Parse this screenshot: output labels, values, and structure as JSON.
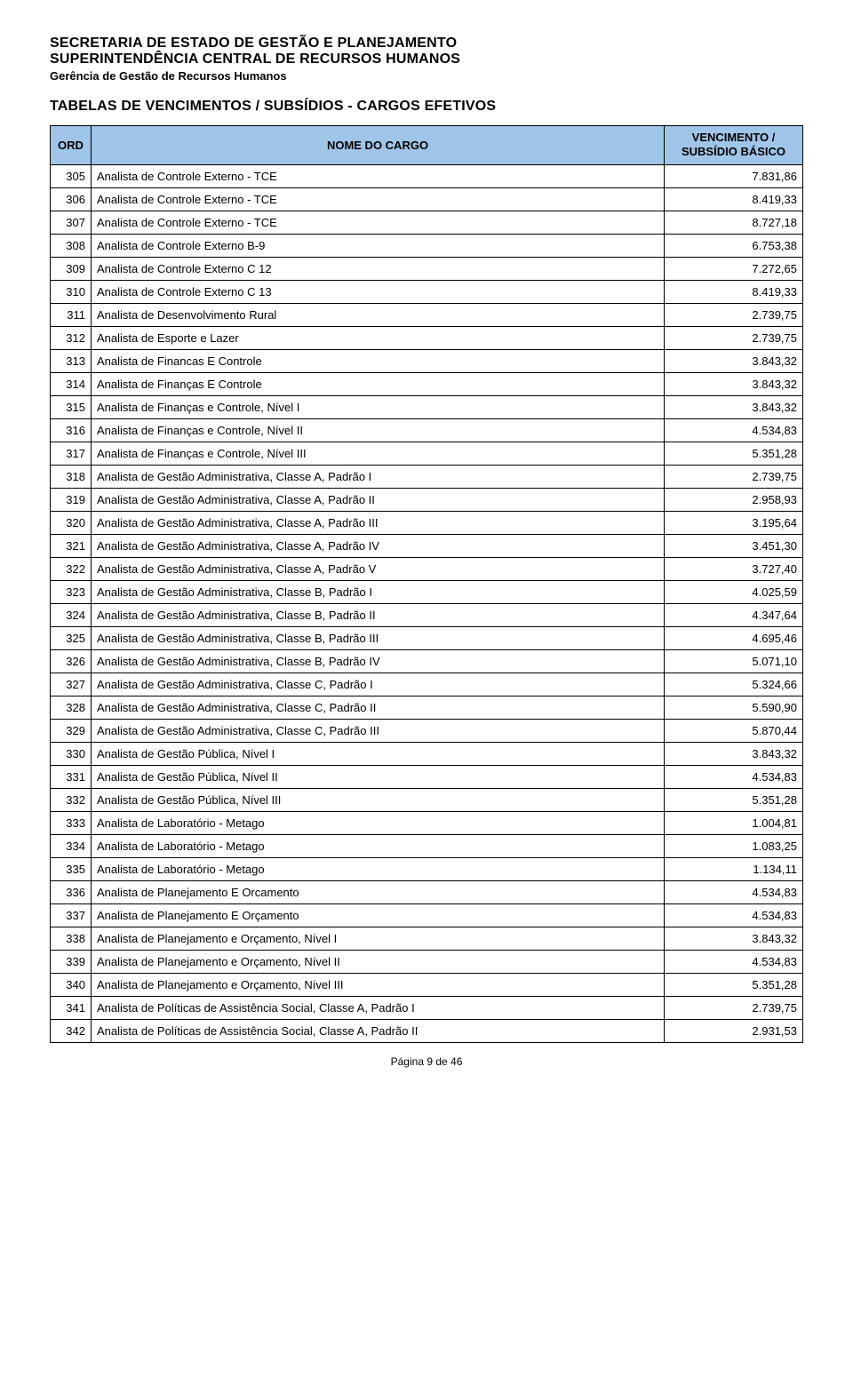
{
  "header": {
    "line1": "SECRETARIA DE ESTADO DE GESTÃO E PLANEJAMENTO",
    "line2": "SUPERINTENDÊNCIA CENTRAL DE RECURSOS HUMANOS",
    "line3": "Gerência de Gestão de Recursos Humanos"
  },
  "title": "TABELAS DE VENCIMENTOS / SUBSÍDIOS - CARGOS EFETIVOS",
  "table": {
    "header_bg": "#9fc5e8",
    "border_color": "#000000",
    "columns": {
      "ord": "ORD",
      "nome": "NOME DO CARGO",
      "venc_line1": "VENCIMENTO /",
      "venc_line2": "SUBSÍDIO BÁSICO"
    },
    "rows": [
      {
        "ord": "305",
        "nome": "Analista de Controle Externo - TCE",
        "val": "7.831,86"
      },
      {
        "ord": "306",
        "nome": "Analista de Controle Externo - TCE",
        "val": "8.419,33"
      },
      {
        "ord": "307",
        "nome": "Analista de Controle Externo - TCE",
        "val": "8.727,18"
      },
      {
        "ord": "308",
        "nome": "Analista de Controle Externo B-9",
        "val": "6.753,38"
      },
      {
        "ord": "309",
        "nome": "Analista de Controle Externo C 12",
        "val": "7.272,65"
      },
      {
        "ord": "310",
        "nome": "Analista de Controle Externo C 13",
        "val": "8.419,33"
      },
      {
        "ord": "311",
        "nome": "Analista de Desenvolvimento Rural",
        "val": "2.739,75"
      },
      {
        "ord": "312",
        "nome": "Analista de Esporte e Lazer",
        "val": "2.739,75"
      },
      {
        "ord": "313",
        "nome": "Analista de Financas E Controle",
        "val": "3.843,32"
      },
      {
        "ord": "314",
        "nome": "Analista de Finanças E Controle",
        "val": "3.843,32"
      },
      {
        "ord": "315",
        "nome": "Analista de Finanças e Controle, Nível I",
        "val": "3.843,32"
      },
      {
        "ord": "316",
        "nome": "Analista de Finanças e Controle, Nível II",
        "val": "4.534,83"
      },
      {
        "ord": "317",
        "nome": "Analista de Finanças e Controle, Nível III",
        "val": "5.351,28"
      },
      {
        "ord": "318",
        "nome": "Analista de Gestão Administrativa, Classe A, Padrão I",
        "val": "2.739,75"
      },
      {
        "ord": "319",
        "nome": "Analista de Gestão Administrativa, Classe A, Padrão II",
        "val": "2.958,93"
      },
      {
        "ord": "320",
        "nome": "Analista de Gestão Administrativa, Classe A, Padrão III",
        "val": "3.195,64"
      },
      {
        "ord": "321",
        "nome": "Analista de Gestão Administrativa, Classe A, Padrão IV",
        "val": "3.451,30"
      },
      {
        "ord": "322",
        "nome": "Analista de Gestão Administrativa, Classe A, Padrão V",
        "val": "3.727,40"
      },
      {
        "ord": "323",
        "nome": "Analista de Gestão Administrativa, Classe B, Padrão I",
        "val": "4.025,59"
      },
      {
        "ord": "324",
        "nome": "Analista de Gestão Administrativa, Classe B, Padrão II",
        "val": "4.347,64"
      },
      {
        "ord": "325",
        "nome": "Analista de Gestão Administrativa, Classe B, Padrão III",
        "val": "4.695,46"
      },
      {
        "ord": "326",
        "nome": "Analista de Gestão Administrativa, Classe B, Padrão IV",
        "val": "5.071,10"
      },
      {
        "ord": "327",
        "nome": "Analista de Gestão Administrativa, Classe C, Padrão I",
        "val": "5.324,66"
      },
      {
        "ord": "328",
        "nome": "Analista de Gestão Administrativa, Classe C, Padrão II",
        "val": "5.590,90"
      },
      {
        "ord": "329",
        "nome": "Analista de Gestão Administrativa, Classe C, Padrão III",
        "val": "5.870,44"
      },
      {
        "ord": "330",
        "nome": "Analista de Gestão Pública, Nível I",
        "val": "3.843,32"
      },
      {
        "ord": "331",
        "nome": "Analista de Gestão Pública, Nível II",
        "val": "4.534,83"
      },
      {
        "ord": "332",
        "nome": "Analista de Gestão Pública, Nível III",
        "val": "5.351,28"
      },
      {
        "ord": "333",
        "nome": "Analista de Laboratório - Metago",
        "val": "1.004,81"
      },
      {
        "ord": "334",
        "nome": "Analista de Laboratório - Metago",
        "val": "1.083,25"
      },
      {
        "ord": "335",
        "nome": "Analista de Laboratório - Metago",
        "val": "1.134,11"
      },
      {
        "ord": "336",
        "nome": "Analista de Planejamento E Orcamento",
        "val": "4.534,83"
      },
      {
        "ord": "337",
        "nome": "Analista de Planejamento E Orçamento",
        "val": "4.534,83"
      },
      {
        "ord": "338",
        "nome": "Analista de Planejamento e Orçamento, Nível I",
        "val": "3.843,32"
      },
      {
        "ord": "339",
        "nome": "Analista de Planejamento e Orçamento, Nível II",
        "val": "4.534,83"
      },
      {
        "ord": "340",
        "nome": "Analista de Planejamento e Orçamento, Nível III",
        "val": "5.351,28"
      },
      {
        "ord": "341",
        "nome": "Analista de Políticas de Assistência Social, Classe A, Padrão I",
        "val": "2.739,75"
      },
      {
        "ord": "342",
        "nome": "Analista de Políticas de Assistência Social, Classe A, Padrão II",
        "val": "2.931,53"
      }
    ]
  },
  "footer": "Página 9 de 46"
}
